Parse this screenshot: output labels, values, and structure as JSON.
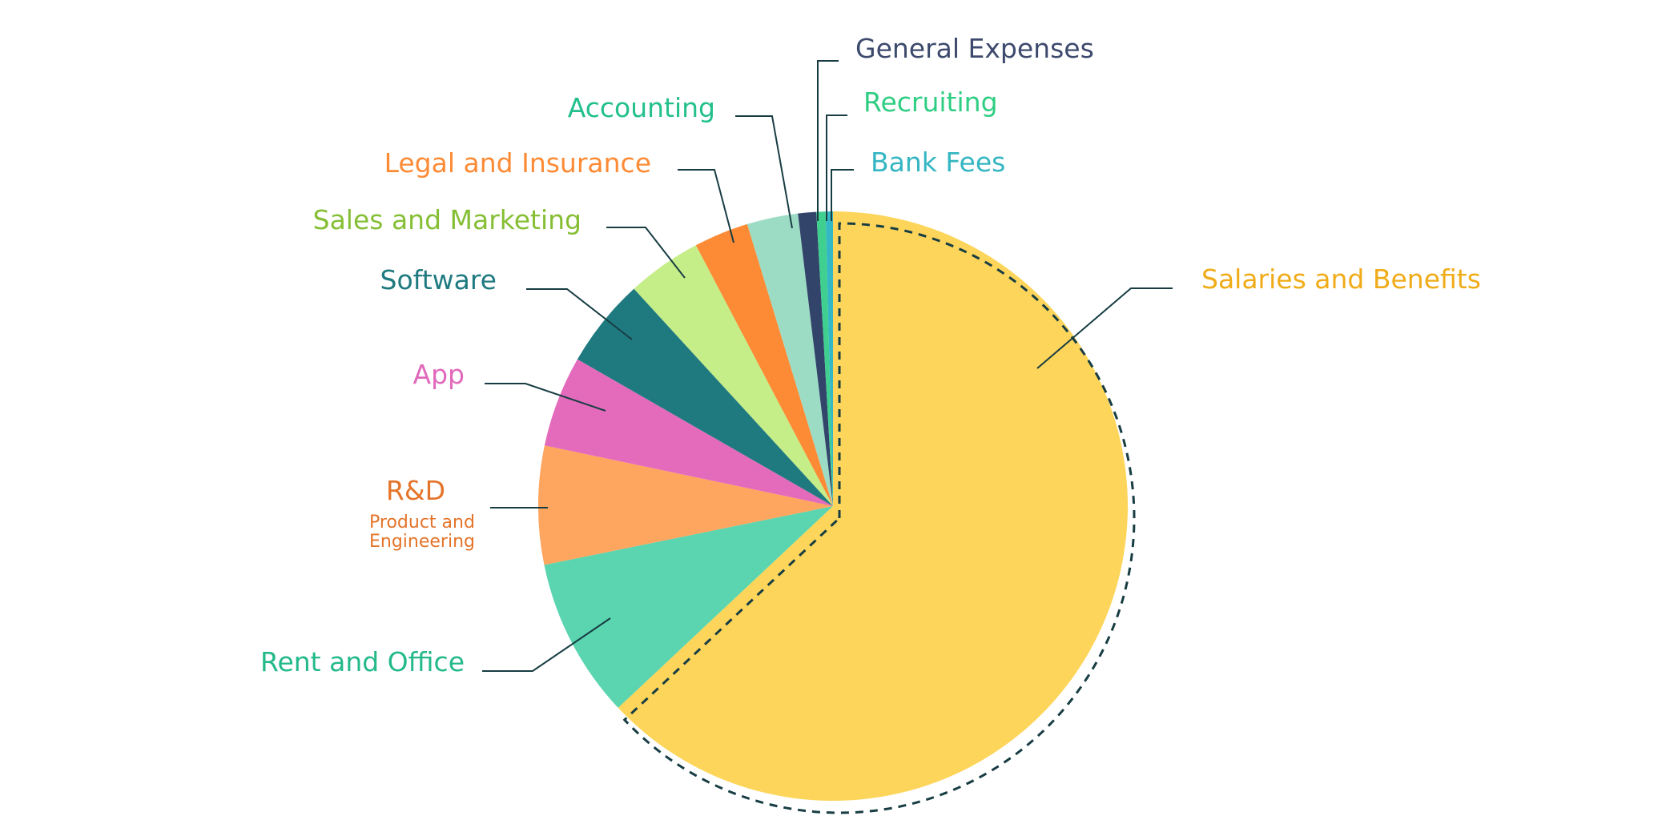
{
  "chart_data": {
    "type": "pie",
    "title": "",
    "start_angle_deg": 0,
    "direction": "clockwise",
    "exploded": "Salaries and Benefits",
    "exploded_outline": "dashed",
    "slices": [
      {
        "id": "salaries",
        "label": "Salaries and Benefits",
        "sublabel": "",
        "value": 63.0,
        "color": "#fdd55a",
        "text_color": "#f0ac18"
      },
      {
        "id": "rent",
        "label": "Rent and Office",
        "sublabel": "",
        "value": 8.8,
        "color": "#5bd5af",
        "text_color": "#23b98a"
      },
      {
        "id": "rnd",
        "label": "R&D",
        "sublabel": "Product and Engineering",
        "value": 6.5,
        "color": "#fea55f",
        "text_color": "#e4742a"
      },
      {
        "id": "app",
        "label": "App",
        "sublabel": "",
        "value": 5.0,
        "color": "#e46bbc",
        "text_color": "#e169bb"
      },
      {
        "id": "software",
        "label": "Software",
        "sublabel": "",
        "value": 4.9,
        "color": "#1f7a80",
        "text_color": "#1f7a80"
      },
      {
        "id": "sales",
        "label": "Sales and Marketing",
        "sublabel": "",
        "value": 4.1,
        "color": "#c5ed88",
        "text_color": "#86bf35"
      },
      {
        "id": "legal",
        "label": "Legal and Insurance",
        "sublabel": "",
        "value": 3.0,
        "color": "#fd8b36",
        "text_color": "#fd8b36"
      },
      {
        "id": "accounting",
        "label": "Accounting",
        "sublabel": "",
        "value": 2.8,
        "color": "#9ddcc4",
        "text_color": "#23c08e"
      },
      {
        "id": "general",
        "label": "General Expenses",
        "sublabel": "",
        "value": 1.0,
        "color": "#33446b",
        "text_color": "#3d4a6d"
      },
      {
        "id": "recruiting",
        "label": "Recruiting",
        "sublabel": "",
        "value": 0.5,
        "color": "#3fd08f",
        "text_color": "#2fce83"
      },
      {
        "id": "bank",
        "label": "Bank Fees",
        "sublabel": "",
        "value": 0.4,
        "color": "#34b8c4",
        "text_color": "#34b6c2"
      }
    ]
  }
}
